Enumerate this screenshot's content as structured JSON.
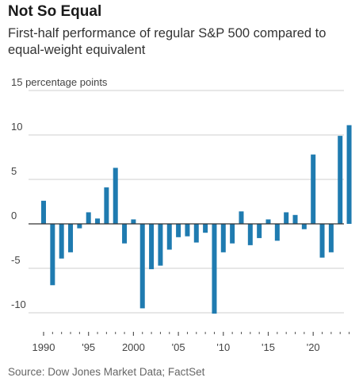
{
  "chart_data": {
    "type": "bar",
    "title": "Not So Equal",
    "subtitle": "First-half performance of regular S&P 500 compared to equal-weight equivalent",
    "ylabel_unit": "percentage points",
    "source": "Source: Dow Jones Market Data; FactSet",
    "ylim": [
      -12,
      16
    ],
    "yticks": [
      {
        "value": 15,
        "label": "15 percentage points"
      },
      {
        "value": 10,
        "label": "10"
      },
      {
        "value": 5,
        "label": "5"
      },
      {
        "value": 0,
        "label": "0"
      },
      {
        "value": -5,
        "label": "-5"
      },
      {
        "value": -10,
        "label": "-10"
      }
    ],
    "xticks": [
      {
        "value": 1990,
        "label": "1990"
      },
      {
        "value": 1995,
        "label": "'95"
      },
      {
        "value": 2000,
        "label": "2000"
      },
      {
        "value": 2005,
        "label": "'05"
      },
      {
        "value": 2010,
        "label": "'10"
      },
      {
        "value": 2015,
        "label": "'15"
      },
      {
        "value": 2020,
        "label": "'20"
      }
    ],
    "grid": true,
    "bar_color": "#1f7bb0",
    "x": [
      1990,
      1991,
      1992,
      1993,
      1994,
      1995,
      1996,
      1997,
      1998,
      1999,
      2000,
      2001,
      2002,
      2003,
      2004,
      2005,
      2006,
      2007,
      2008,
      2009,
      2010,
      2011,
      2012,
      2013,
      2014,
      2015,
      2016,
      2017,
      2018,
      2019,
      2020,
      2021,
      2022,
      2023,
      2024
    ],
    "values": [
      2.6,
      -6.9,
      -3.9,
      -3.2,
      -0.5,
      1.3,
      0.6,
      4.1,
      6.3,
      -2.2,
      0.5,
      -9.5,
      -5.1,
      -4.7,
      -2.9,
      -1.5,
      -1.4,
      -2.1,
      -1.0,
      -10.1,
      -3.2,
      -2.2,
      1.4,
      -2.4,
      -1.6,
      0.5,
      -1.9,
      1.3,
      1.0,
      -0.6,
      7.8,
      -3.8,
      -3.2,
      9.9,
      11.1
    ]
  }
}
